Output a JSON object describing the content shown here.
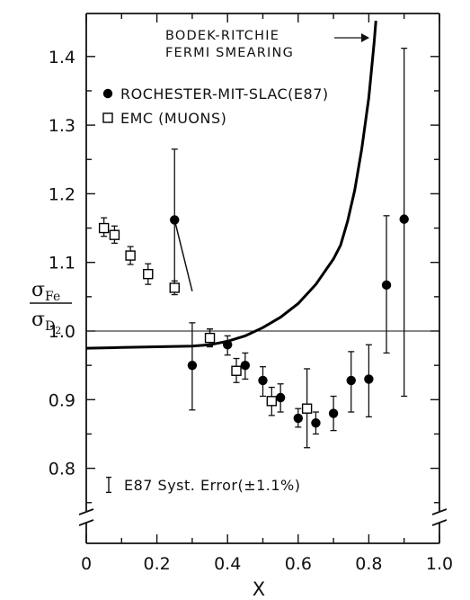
{
  "chart_data": {
    "type": "scatter",
    "xlabel": "X",
    "ylabel_numerator": "σ",
    "ylabel_numerator_sub": "Fe",
    "ylabel_denominator": "σ",
    "ylabel_denominator_sub": "D",
    "ylabel_denominator_subsub": "2",
    "xlim": [
      0,
      1.0
    ],
    "ylim": [
      0.72,
      1.45
    ],
    "x_ticks": [
      "0",
      "0.2",
      "0.4",
      "0.6",
      "0.8",
      "1.0"
    ],
    "y_ticks": [
      "0.8",
      "0.9",
      "1.0",
      "1.1",
      "1.2",
      "1.3",
      "1.4"
    ],
    "reference_line_y": 1.0,
    "axis_break": true,
    "series": [
      {
        "name": "ROCHESTER-MIT-SLAC(E87)",
        "marker": "filled-circle",
        "points": [
          {
            "x": 0.25,
            "y": 1.162,
            "lo": 1.06,
            "hi": 1.265
          },
          {
            "x": 0.3,
            "y": 0.95,
            "lo": 0.885,
            "hi": 1.012
          },
          {
            "x": 0.35,
            "y": 0.99,
            "lo": 0.978,
            "hi": 1.003
          },
          {
            "x": 0.4,
            "y": 0.98,
            "lo": 0.965,
            "hi": 0.993
          },
          {
            "x": 0.45,
            "y": 0.95,
            "lo": 0.93,
            "hi": 0.968
          },
          {
            "x": 0.5,
            "y": 0.928,
            "lo": 0.905,
            "hi": 0.948
          },
          {
            "x": 0.55,
            "y": 0.903,
            "lo": 0.882,
            "hi": 0.923
          },
          {
            "x": 0.6,
            "y": 0.873,
            "lo": 0.86,
            "hi": 0.887
          },
          {
            "x": 0.65,
            "y": 0.866,
            "lo": 0.85,
            "hi": 0.882
          },
          {
            "x": 0.7,
            "y": 0.88,
            "lo": 0.855,
            "hi": 0.905
          },
          {
            "x": 0.75,
            "y": 0.928,
            "lo": 0.882,
            "hi": 0.97
          },
          {
            "x": 0.8,
            "y": 0.93,
            "lo": 0.875,
            "hi": 0.98
          },
          {
            "x": 0.85,
            "y": 1.067,
            "lo": 0.968,
            "hi": 1.168
          },
          {
            "x": 0.9,
            "y": 1.163,
            "lo": 0.905,
            "hi": 1.412
          }
        ]
      },
      {
        "name": "EMC (MUONS)",
        "marker": "open-square",
        "points": [
          {
            "x": 0.05,
            "y": 1.15,
            "lo": 1.138,
            "hi": 1.165
          },
          {
            "x": 0.08,
            "y": 1.14,
            "lo": 1.128,
            "hi": 1.153
          },
          {
            "x": 0.125,
            "y": 1.11,
            "lo": 1.097,
            "hi": 1.123
          },
          {
            "x": 0.175,
            "y": 1.083,
            "lo": 1.068,
            "hi": 1.098
          },
          {
            "x": 0.25,
            "y": 1.063,
            "lo": 1.053,
            "hi": 1.073
          },
          {
            "x": 0.35,
            "y": 0.99,
            "lo": 0.977,
            "hi": 1.003
          },
          {
            "x": 0.425,
            "y": 0.942,
            "lo": 0.925,
            "hi": 0.96
          },
          {
            "x": 0.525,
            "y": 0.898,
            "lo": 0.877,
            "hi": 0.918
          },
          {
            "x": 0.625,
            "y": 0.887,
            "lo": 0.83,
            "hi": 0.945
          }
        ]
      }
    ],
    "curve": {
      "name": "BODEK-RITCHIE FERMI SMEARING",
      "label_lines": [
        "BODEK-RITCHIE",
        "FERMI SMEARING"
      ],
      "points": [
        [
          0.0,
          0.975
        ],
        [
          0.1,
          0.976
        ],
        [
          0.2,
          0.977
        ],
        [
          0.3,
          0.978
        ],
        [
          0.35,
          0.98
        ],
        [
          0.4,
          0.985
        ],
        [
          0.45,
          0.993
        ],
        [
          0.5,
          1.005
        ],
        [
          0.55,
          1.02
        ],
        [
          0.6,
          1.04
        ],
        [
          0.65,
          1.068
        ],
        [
          0.7,
          1.105
        ],
        [
          0.72,
          1.125
        ],
        [
          0.74,
          1.16
        ],
        [
          0.76,
          1.205
        ],
        [
          0.78,
          1.265
        ],
        [
          0.8,
          1.34
        ],
        [
          0.815,
          1.42
        ],
        [
          0.82,
          1.452
        ]
      ]
    },
    "extrapolation_segment": [
      [
        0.25,
        1.162
      ],
      [
        0.3,
        1.058
      ]
    ],
    "syst_error_label": "E87 Syst. Error(±1.1%)",
    "syst_error_half_height": 0.011
  }
}
